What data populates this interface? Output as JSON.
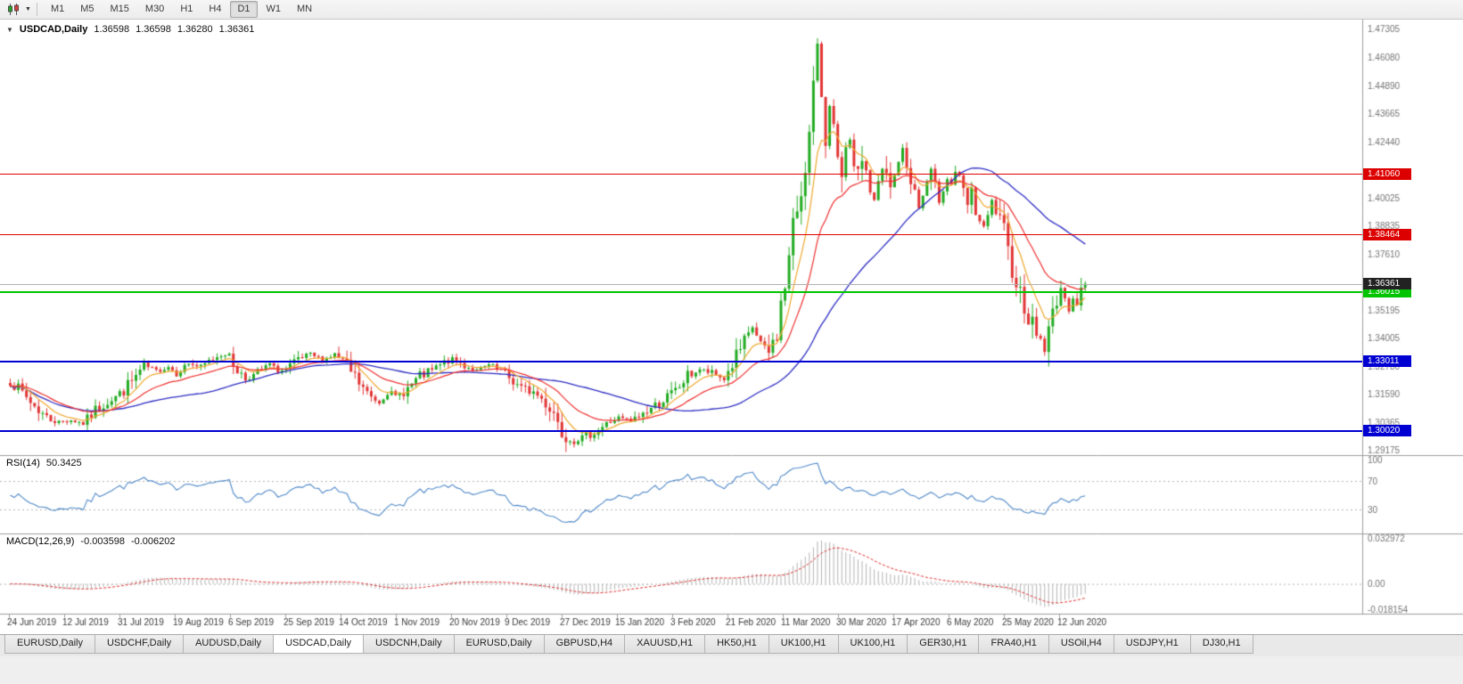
{
  "toolbar": {
    "timeframes": [
      "M1",
      "M5",
      "M15",
      "M30",
      "H1",
      "H4",
      "D1",
      "W1",
      "MN"
    ],
    "active_timeframe": "D1"
  },
  "chart": {
    "symbol_period": "USDCAD,Daily",
    "ohlc": {
      "open": "1.36598",
      "high": "1.36598",
      "low": "1.36280",
      "close": "1.36361"
    },
    "seed": 7,
    "price_scale": {
      "max": 1.477266,
      "min": 1.289832
    },
    "price_axis_labels": [
      "1.47305",
      "1.46080",
      "1.44890",
      "1.43665",
      "1.42440",
      "1.40025",
      "1.38835",
      "1.37610",
      "1.35195",
      "1.34005",
      "1.32780",
      "1.31590",
      "1.30365",
      "1.29175"
    ],
    "current_price": {
      "label": "1.36361",
      "value": 1.36361,
      "line_color": "#b0b0b0",
      "tag_color": "#222222"
    },
    "hlines": [
      {
        "price": 1.4106,
        "label": "1.41060",
        "color": "#dd0000",
        "width": 1
      },
      {
        "price": 1.38464,
        "label": "1.38464",
        "color": "#dd0000",
        "width": 1
      },
      {
        "price": 1.36015,
        "label": "1.36015",
        "color": "#00c400",
        "width": 2
      },
      {
        "price": 1.33011,
        "label": "1.33011",
        "color": "#0000d2",
        "width": 2
      },
      {
        "price": 1.3002,
        "label": "1.30020",
        "color": "#0000d2",
        "width": 2
      }
    ],
    "date_labels": [
      "24 Jun 2019",
      "12 Jul 2019",
      "31 Jul 2019",
      "19 Aug 2019",
      "6 Sep 2019",
      "25 Sep 2019",
      "14 Oct 2019",
      "1 Nov 2019",
      "20 Nov 2019",
      "9 Dec 2019",
      "27 Dec 2019",
      "15 Jan 2020",
      "3 Feb 2020",
      "21 Feb 2020",
      "11 Mar 2020",
      "30 Mar 2020",
      "17 Apr 2020",
      "6 May 2020",
      "25 May 2020",
      "12 Jun 2020"
    ],
    "colors": {
      "up": "#22ab22",
      "down": "#e23535",
      "ma_fast": "#f0a830",
      "ma_mid": "#f03030",
      "ma_slow": "#2e2ec4"
    },
    "candle_anchors": [
      [
        0,
        1.3215
      ],
      [
        3,
        1.3165
      ],
      [
        6,
        1.311
      ],
      [
        9,
        1.306
      ],
      [
        12,
        1.304
      ],
      [
        15,
        1.305
      ],
      [
        18,
        1.3035
      ],
      [
        21,
        1.309
      ],
      [
        24,
        1.313
      ],
      [
        27,
        1.316
      ],
      [
        30,
        1.3215
      ],
      [
        33,
        1.328
      ],
      [
        36,
        1.326
      ],
      [
        39,
        1.328
      ],
      [
        41,
        1.325
      ],
      [
        44,
        1.3295
      ],
      [
        47,
        1.3275
      ],
      [
        50,
        1.3315
      ],
      [
        53,
        1.334
      ],
      [
        55,
        1.329
      ],
      [
        58,
        1.3225
      ],
      [
        61,
        1.325
      ],
      [
        64,
        1.329
      ],
      [
        66,
        1.326
      ],
      [
        68,
        1.3265
      ],
      [
        71,
        1.3305
      ],
      [
        74,
        1.333
      ],
      [
        77,
        1.331
      ],
      [
        80,
        1.333
      ],
      [
        82,
        1.33
      ],
      [
        85,
        1.323
      ],
      [
        88,
        1.316
      ],
      [
        91,
        1.3125
      ],
      [
        93,
        1.317
      ],
      [
        95,
        1.3145
      ],
      [
        98,
        1.3185
      ],
      [
        101,
        1.3235
      ],
      [
        104,
        1.326
      ],
      [
        107,
        1.3295
      ],
      [
        109,
        1.331
      ],
      [
        112,
        1.3285
      ],
      [
        115,
        1.326
      ],
      [
        118,
        1.3285
      ],
      [
        121,
        1.3255
      ],
      [
        123,
        1.323
      ],
      [
        126,
        1.3185
      ],
      [
        129,
        1.317
      ],
      [
        132,
        1.3125
      ],
      [
        134,
        1.3085
      ],
      [
        136,
        1.3
      ],
      [
        139,
        1.2958
      ],
      [
        142,
        1.298
      ],
      [
        145,
        1.3008
      ],
      [
        148,
        1.3042
      ],
      [
        150,
        1.3058
      ],
      [
        153,
        1.3042
      ],
      [
        156,
        1.3078
      ],
      [
        159,
        1.3112
      ],
      [
        162,
        1.3148
      ],
      [
        164,
        1.3172
      ],
      [
        167,
        1.3238
      ],
      [
        170,
        1.3268
      ],
      [
        173,
        1.3248
      ],
      [
        176,
        1.3228
      ],
      [
        178,
        1.3288
      ],
      [
        180,
        1.3348
      ],
      [
        182,
        1.3412
      ],
      [
        183,
        1.3448
      ],
      [
        185,
        1.3382
      ],
      [
        187,
        1.3335
      ],
      [
        189,
        1.3425
      ],
      [
        190,
        1.3545
      ],
      [
        191,
        1.3625
      ],
      [
        192,
        1.3748
      ],
      [
        193,
        1.3885
      ],
      [
        194,
        1.3958
      ],
      [
        195,
        1.4032
      ],
      [
        196,
        1.4152
      ],
      [
        197,
        1.4272
      ],
      [
        198,
        1.4488
      ],
      [
        199,
        1.4625
      ],
      [
        200,
        1.4445
      ],
      [
        201,
        1.4252
      ],
      [
        202,
        1.4442
      ],
      [
        203,
        1.4302
      ],
      [
        204,
        1.4172
      ],
      [
        205,
        1.4068
      ],
      [
        206,
        1.4192
      ],
      [
        207,
        1.4245
      ],
      [
        208,
        1.4152
      ],
      [
        209,
        1.4092
      ],
      [
        210,
        1.4185
      ],
      [
        211,
        1.4122
      ],
      [
        212,
        1.4032
      ],
      [
        213,
        1.3985
      ],
      [
        214,
        1.4065
      ],
      [
        215,
        1.4125
      ],
      [
        216,
        1.4092
      ],
      [
        217,
        1.4042
      ],
      [
        218,
        1.4102
      ],
      [
        219,
        1.4165
      ],
      [
        220,
        1.4212
      ],
      [
        221,
        1.4135
      ],
      [
        222,
        1.4092
      ],
      [
        223,
        1.4025
      ],
      [
        224,
        1.3962
      ],
      [
        225,
        1.4012
      ],
      [
        226,
        1.4072
      ],
      [
        227,
        1.4112
      ],
      [
        228,
        1.4052
      ],
      [
        229,
        1.3992
      ],
      [
        230,
        1.4042
      ],
      [
        231,
        1.4092
      ],
      [
        232,
        1.4062
      ],
      [
        233,
        1.4122
      ],
      [
        234,
        1.4082
      ],
      [
        235,
        1.4025
      ],
      [
        236,
        1.3972
      ],
      [
        237,
        1.4012
      ],
      [
        238,
        1.3945
      ],
      [
        239,
        1.3905
      ],
      [
        240,
        1.3865
      ],
      [
        241,
        1.3925
      ],
      [
        242,
        1.3985
      ],
      [
        243,
        1.3945
      ],
      [
        244,
        1.3892
      ],
      [
        245,
        1.3852
      ],
      [
        246,
        1.3765
      ],
      [
        248,
        1.3652
      ],
      [
        250,
        1.3545
      ],
      [
        252,
        1.3455
      ],
      [
        254,
        1.3398
      ],
      [
        255,
        1.3358
      ],
      [
        256,
        1.3425
      ],
      [
        257,
        1.3512
      ],
      [
        258,
        1.3578
      ],
      [
        259,
        1.3622
      ],
      [
        260,
        1.3558
      ],
      [
        261,
        1.3528
      ],
      [
        262,
        1.3582
      ],
      [
        263,
        1.3548
      ],
      [
        264,
        1.3602
      ],
      [
        265,
        1.36361
      ]
    ],
    "wick_overrides": [
      [
        199,
        "high",
        1.4668
      ],
      [
        139,
        "low",
        1.2952
      ],
      [
        255,
        "low",
        1.333
      ]
    ]
  },
  "indicators": {
    "rsi": {
      "name": "RSI(14)",
      "value": "50.3425",
      "period": 14,
      "color": "#5089c9",
      "levels": [
        {
          "label": "100",
          "value": 100,
          "dashed": false
        },
        {
          "label": "70",
          "value": 70,
          "dashed": true
        },
        {
          "label": "30",
          "value": 30,
          "dashed": true
        }
      ]
    },
    "macd": {
      "name": "MACD(12,26,9)",
      "value_main": "-0.003598",
      "value_signal": "-0.006202",
      "fast": 12,
      "slow": 26,
      "signal": 9,
      "scale_max": 0.032972,
      "scale_min": -0.018154,
      "label_max": "0.032972",
      "label_zero": "0.00",
      "label_min": "-0.018154",
      "hist_color": "#b4b4b4",
      "signal_color": "#e03030"
    }
  },
  "tabs": {
    "active_index": 3,
    "items": [
      "EURUSD,Daily",
      "USDCHF,Daily",
      "AUDUSD,Daily",
      "USDCAD,Daily",
      "USDCNH,Daily",
      "EURUSD,Daily",
      "GBPUSD,H4",
      "XAUUSD,H1",
      "HK50,H1",
      "UK100,H1",
      "UK100,H1",
      "GER30,H1",
      "FRA40,H1",
      "USOil,H4",
      "USDJPY,H1",
      "DJ30,H1"
    ]
  }
}
